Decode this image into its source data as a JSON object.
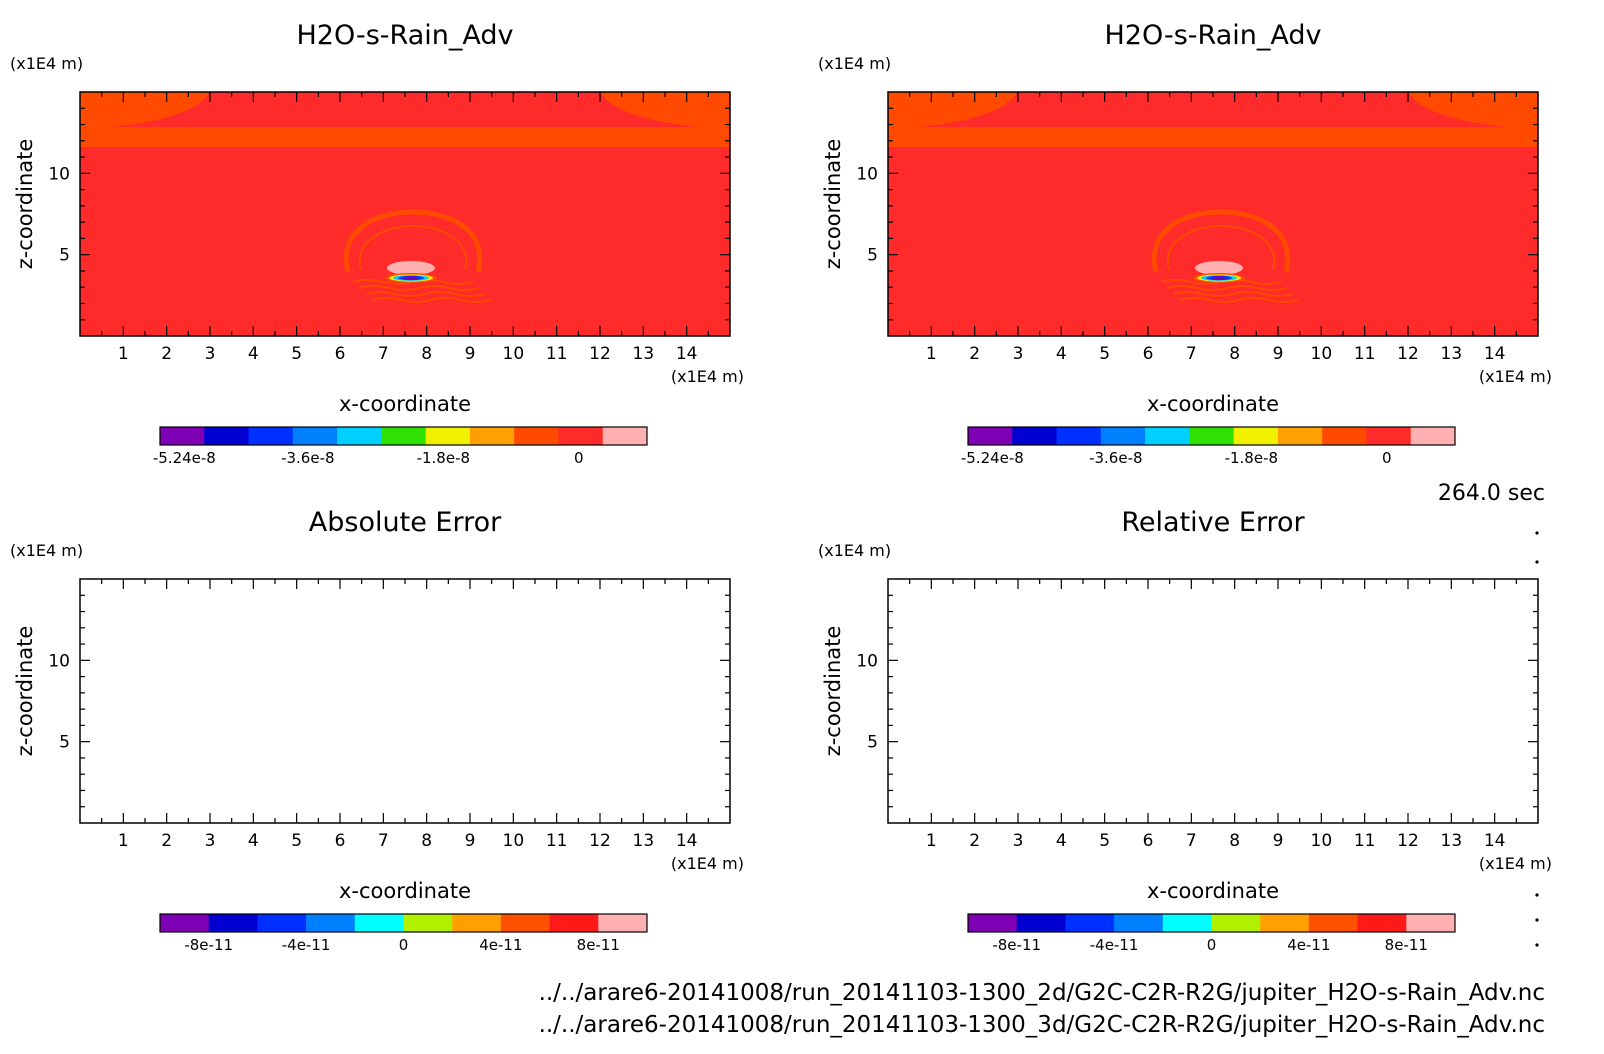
{
  "time_label": "264.0 sec",
  "footer": {
    "line1": "../../arare6-20141008/run_20141103-1300_2d/G2C-C2R-R2G/jupiter_H2O-s-Rain_Adv.nc",
    "line2": "../../arare6-20141008/run_20141103-1300_3d/G2C-C2R-R2G/jupiter_H2O-s-Rain_Adv.nc"
  },
  "colors": {
    "background_field": "#ff2a2a",
    "band": "#ff4a00",
    "pink": "#ffb0b0"
  },
  "chart_data": [
    {
      "type": "heatmap",
      "title": "H2O-s-Rain_Adv",
      "xlabel": "x-coordinate",
      "ylabel": "z-coordinate",
      "x_unit": "(x1E4 m)",
      "y_unit": "(x1E4 m)",
      "xlim": [
        0,
        15
      ],
      "ylim": [
        0,
        15
      ],
      "xticks": [
        "1",
        "2",
        "3",
        "4",
        "5",
        "6",
        "7",
        "8",
        "9",
        "10",
        "11",
        "12",
        "13",
        "14"
      ],
      "yticks": [
        "5",
        "10"
      ],
      "has_field": true,
      "colorbar": {
        "colors": [
          "#7f00b4",
          "#0000d0",
          "#0030ff",
          "#0080ff",
          "#00d0ff",
          "#30e000",
          "#f0f000",
          "#ffa000",
          "#ff4a00",
          "#ff2a2a",
          "#ffb0b0"
        ],
        "tick_labels": [
          "-5.24e-8",
          "-3.6e-8",
          "-1.8e-8",
          "0"
        ],
        "tick_values": [
          -5.24e-08,
          -3.6e-08,
          -1.8e-08,
          0
        ]
      }
    },
    {
      "type": "heatmap",
      "title": "H2O-s-Rain_Adv",
      "xlabel": "x-coordinate",
      "ylabel": "z-coordinate",
      "x_unit": "(x1E4 m)",
      "y_unit": "(x1E4 m)",
      "xlim": [
        0,
        15
      ],
      "ylim": [
        0,
        15
      ],
      "xticks": [
        "1",
        "2",
        "3",
        "4",
        "5",
        "6",
        "7",
        "8",
        "9",
        "10",
        "11",
        "12",
        "13",
        "14"
      ],
      "yticks": [
        "5",
        "10"
      ],
      "has_field": true,
      "colorbar": {
        "colors": [
          "#7f00b4",
          "#0000d0",
          "#0030ff",
          "#0080ff",
          "#00d0ff",
          "#30e000",
          "#f0f000",
          "#ffa000",
          "#ff4a00",
          "#ff2a2a",
          "#ffb0b0"
        ],
        "tick_labels": [
          "-5.24e-8",
          "-3.6e-8",
          "-1.8e-8",
          "0"
        ],
        "tick_values": [
          -5.24e-08,
          -3.6e-08,
          -1.8e-08,
          0
        ]
      }
    },
    {
      "type": "heatmap",
      "title": "Absolute Error",
      "xlabel": "x-coordinate",
      "ylabel": "z-coordinate",
      "x_unit": "(x1E4 m)",
      "y_unit": "(x1E4 m)",
      "xlim": [
        0,
        15
      ],
      "ylim": [
        0,
        15
      ],
      "xticks": [
        "1",
        "2",
        "3",
        "4",
        "5",
        "6",
        "7",
        "8",
        "9",
        "10",
        "11",
        "12",
        "13",
        "14"
      ],
      "yticks": [
        "5",
        "10"
      ],
      "has_field": false,
      "colorbar": {
        "colors": [
          "#7f00b4",
          "#0000d0",
          "#0030ff",
          "#0080ff",
          "#00ffff",
          "#b0f000",
          "#ffa000",
          "#ff5000",
          "#ff1a1a",
          "#ffb0b0"
        ],
        "tick_labels": [
          "-8e-11",
          "-4e-11",
          "0",
          "4e-11",
          "8e-11"
        ],
        "tick_values": [
          -8e-11,
          -4e-11,
          0,
          4e-11,
          8e-11
        ]
      }
    },
    {
      "type": "heatmap",
      "title": "Relative Error",
      "xlabel": "x-coordinate",
      "ylabel": "z-coordinate",
      "x_unit": "(x1E4 m)",
      "y_unit": "(x1E4 m)",
      "xlim": [
        0,
        15
      ],
      "ylim": [
        0,
        15
      ],
      "xticks": [
        "1",
        "2",
        "3",
        "4",
        "5",
        "6",
        "7",
        "8",
        "9",
        "10",
        "11",
        "12",
        "13",
        "14"
      ],
      "yticks": [
        "5",
        "10"
      ],
      "has_field": false,
      "colorbar": {
        "colors": [
          "#7f00b4",
          "#0000d0",
          "#0030ff",
          "#0080ff",
          "#00ffff",
          "#b0f000",
          "#ffa000",
          "#ff5000",
          "#ff1a1a",
          "#ffb0b0"
        ],
        "tick_labels": [
          "-8e-11",
          "-4e-11",
          "0",
          "4e-11",
          "8e-11"
        ],
        "tick_values": [
          -8e-11,
          -4e-11,
          0,
          4e-11,
          8e-11
        ]
      }
    }
  ]
}
